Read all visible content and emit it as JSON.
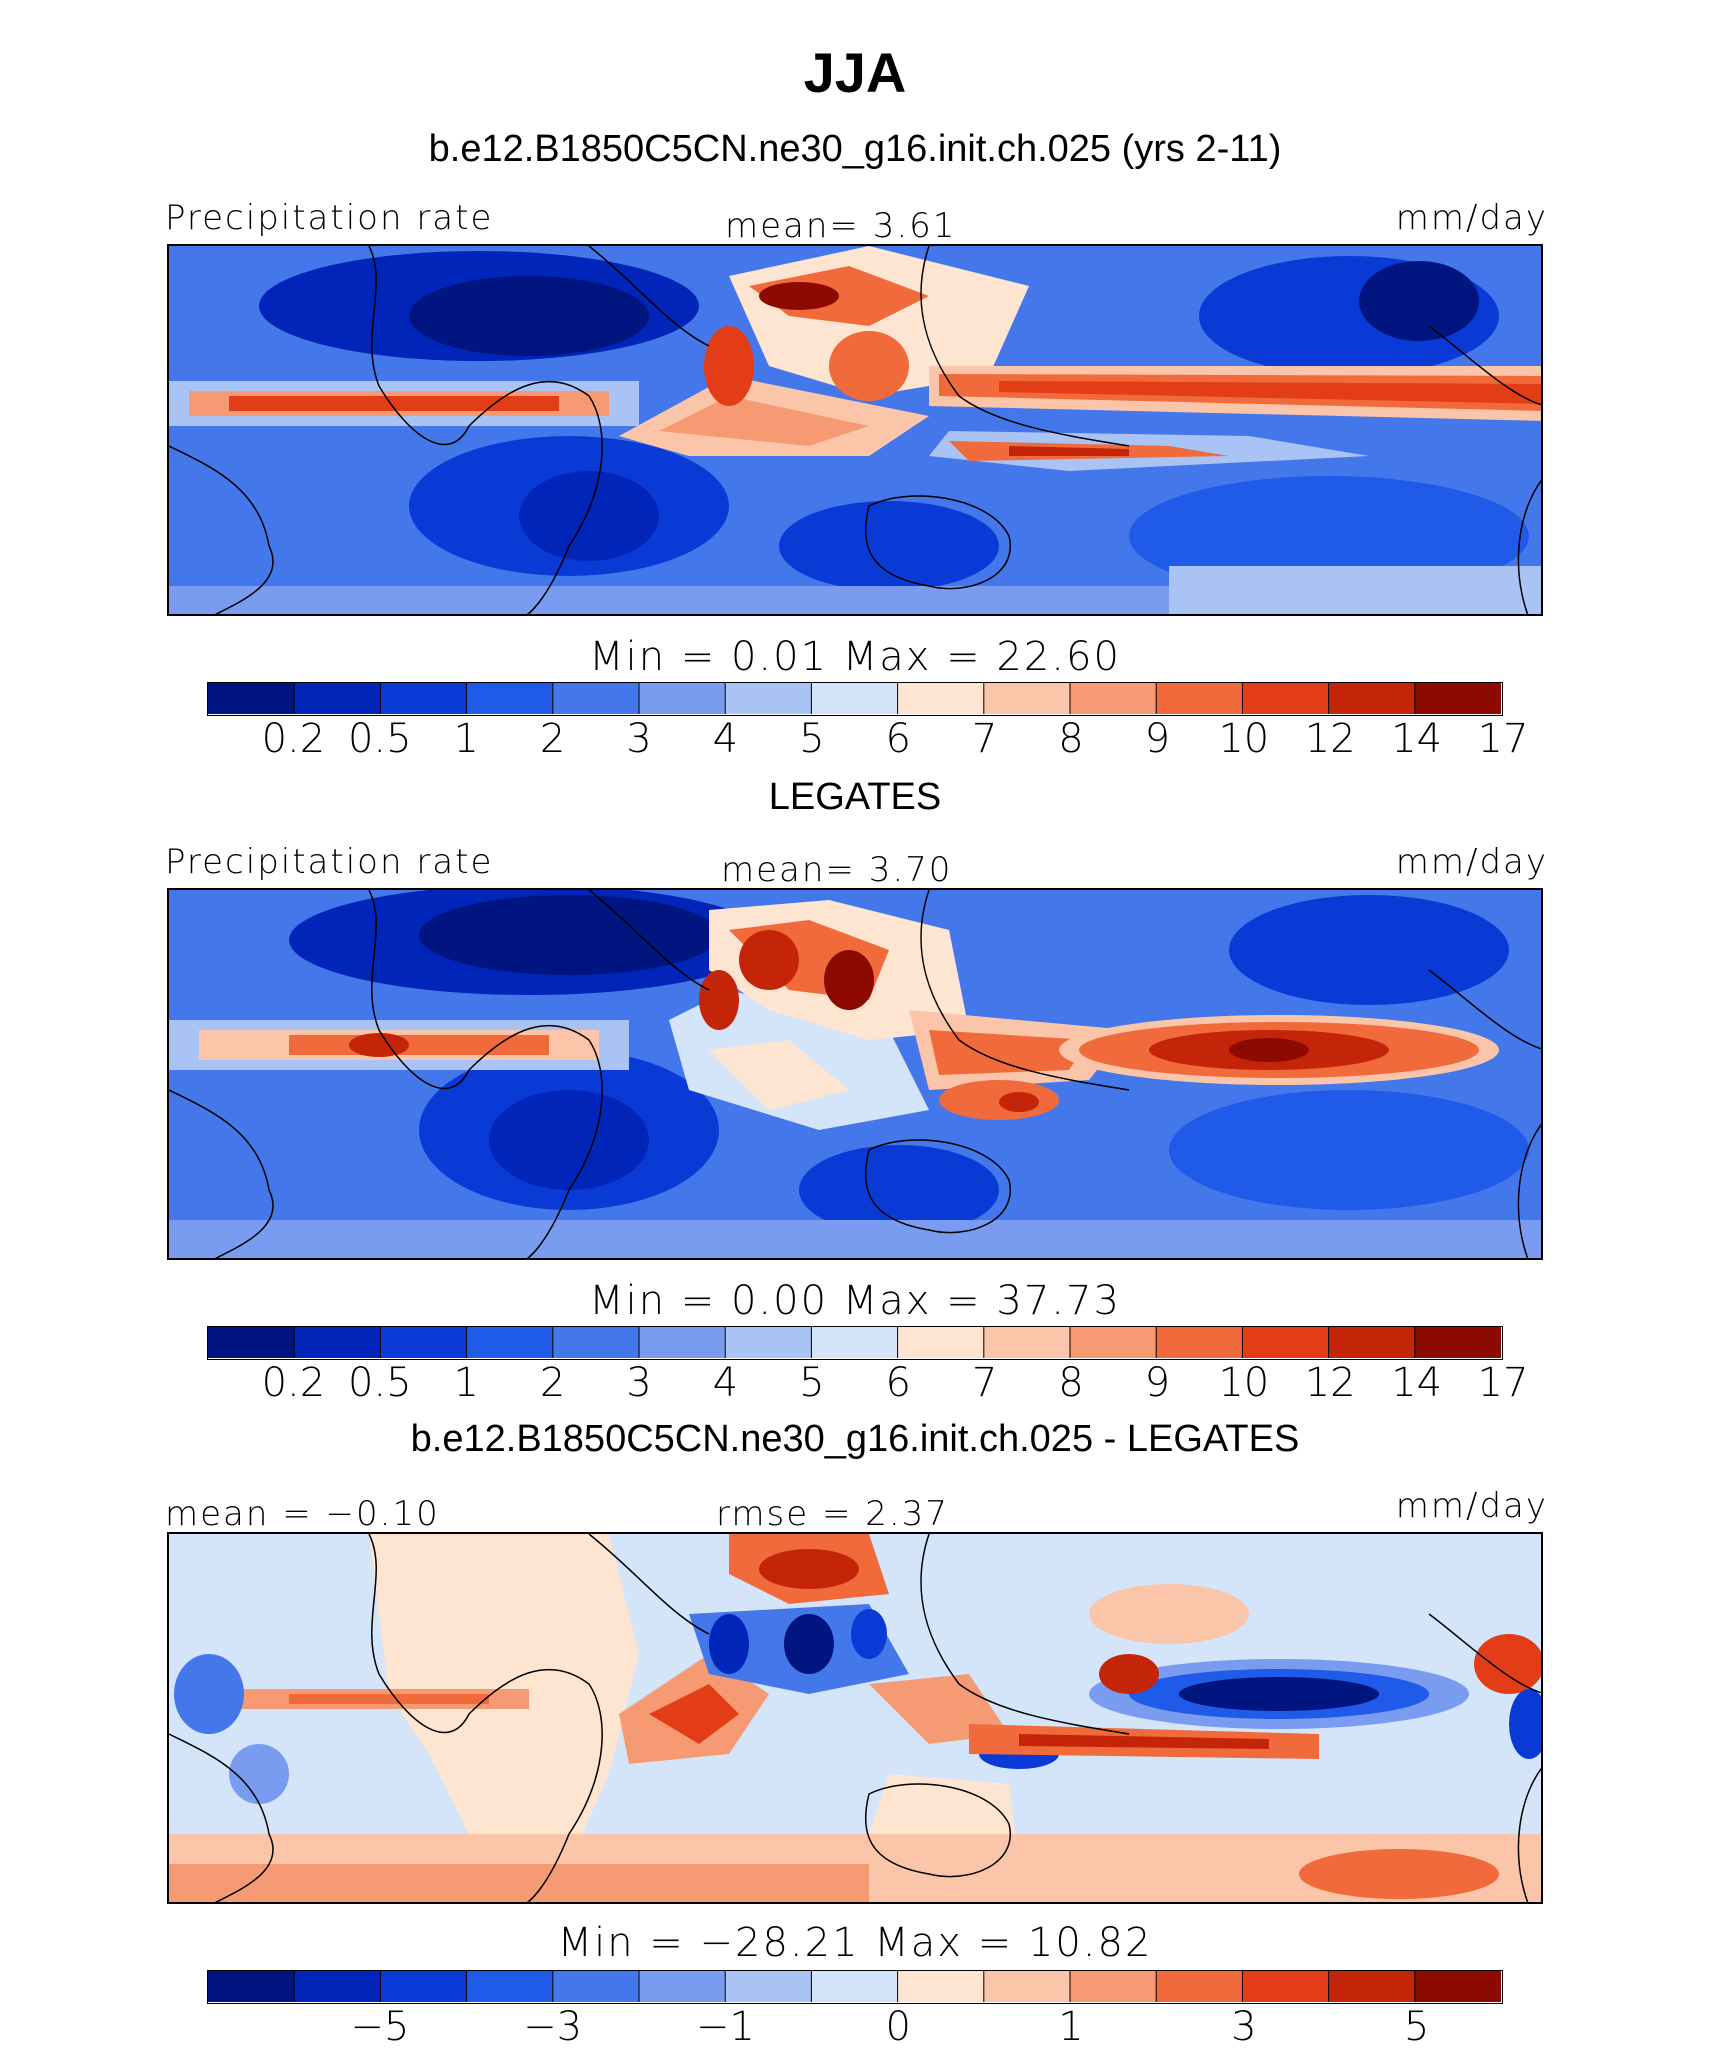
{
  "page": {
    "title": "JJA",
    "panel_titles": [
      "b.e12.B1850C5CN.ne30_g16.init.ch.025 (yrs 2-11)",
      "LEGATES",
      "b.e12.B1850C5CN.ne30_g16.init.ch.025 - LEGATES"
    ]
  },
  "chart_data": [
    {
      "type": "heatmap",
      "title": "b.e12.B1850C5CN.ne30_g16.init.ch.025 (yrs 2-11)",
      "left_label": "Precipitation rate",
      "center_label": "mean=    3.61",
      "units": "mm/day",
      "min_max": "Min  =    0.01  Max  =   22.60",
      "colorbar_ticks": [
        "0.2",
        "0.5",
        "1",
        "2",
        "3",
        "4",
        "5",
        "6",
        "7",
        "8",
        "9",
        "10",
        "12",
        "14",
        "17"
      ],
      "colorbar_colors": [
        "#00157f",
        "#0025b8",
        "#0a3ad6",
        "#1f5ae8",
        "#4478ea",
        "#7a9cf0",
        "#aac3f5",
        "#d4e5fa",
        "#fde5d2",
        "#fbc5aa",
        "#f69a73",
        "#f06a3c",
        "#e33d17",
        "#c42508",
        "#8c0a00"
      ]
    },
    {
      "type": "heatmap",
      "title": "LEGATES",
      "left_label": "Precipitation rate",
      "center_label": "mean=    3.70",
      "units": "mm/day",
      "min_max": "Min  =    0.00  Max  =   37.73",
      "colorbar_ticks": [
        "0.2",
        "0.5",
        "1",
        "2",
        "3",
        "4",
        "5",
        "6",
        "7",
        "8",
        "9",
        "10",
        "12",
        "14",
        "17"
      ],
      "colorbar_colors": [
        "#00157f",
        "#0025b8",
        "#0a3ad6",
        "#1f5ae8",
        "#4478ea",
        "#7a9cf0",
        "#aac3f5",
        "#d4e5fa",
        "#fde5d2",
        "#fbc5aa",
        "#f69a73",
        "#f06a3c",
        "#e33d17",
        "#c42508",
        "#8c0a00"
      ]
    },
    {
      "type": "heatmap",
      "title": "b.e12.B1850C5CN.ne30_g16.init.ch.025 - LEGATES",
      "left_label": "mean  =   −0.10",
      "center_label": "rmse  =    2.37",
      "units": "mm/day",
      "min_max": "Min  =  −28.21  Max  =   10.82",
      "colorbar_ticks": [
        "−5",
        "−3",
        "−1",
        "0",
        "1",
        "3",
        "5"
      ],
      "colorbar_tick_positions": [
        2,
        4,
        6,
        8,
        10,
        12,
        14
      ],
      "colorbar_colors": [
        "#00157f",
        "#0025b8",
        "#0a3ad6",
        "#1f5ae8",
        "#4478ea",
        "#7a9cf0",
        "#aac3f5",
        "#d4e5fa",
        "#fde5d2",
        "#fbc5aa",
        "#f69a73",
        "#f06a3c",
        "#e33d17",
        "#c42508",
        "#8c0a00"
      ]
    }
  ]
}
